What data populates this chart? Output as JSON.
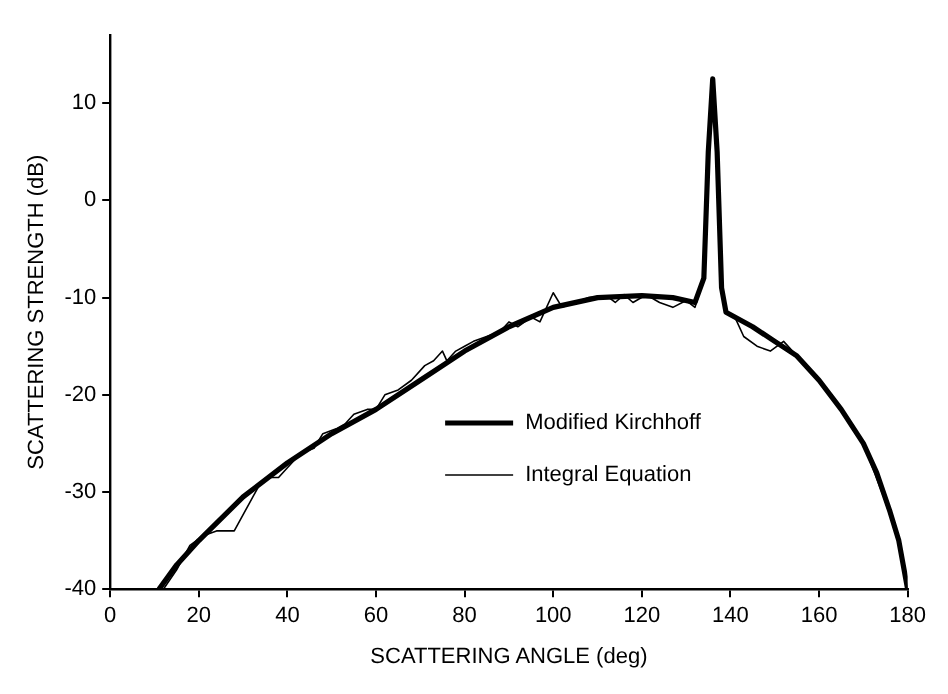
{
  "chart_data": {
    "type": "line",
    "xlabel": "SCATTERING ANGLE (deg)",
    "ylabel": "SCATTERING STRENGTH (dB)",
    "xlim": [
      0,
      180
    ],
    "ylim": [
      -40,
      17
    ],
    "xticks": [
      0,
      20,
      40,
      60,
      80,
      100,
      120,
      140,
      160,
      180
    ],
    "yticks": [
      -40,
      -30,
      -20,
      -10,
      0,
      10
    ],
    "grid": false,
    "legend": "right",
    "marker": "none",
    "series": [
      {
        "name": "Modified Kirchhoff",
        "color": "#000000",
        "x": [
          11,
          15,
          20,
          30,
          40,
          50,
          60,
          70,
          80,
          90,
          100,
          110,
          120,
          127,
          132,
          134,
          135,
          136,
          137,
          138,
          139,
          145,
          150,
          155,
          160,
          165,
          170,
          173,
          176,
          178,
          180
        ],
        "values": [
          -40,
          -37.5,
          -35,
          -30.5,
          -27,
          -24,
          -21.5,
          -18.5,
          -15.5,
          -13,
          -11,
          -10,
          -9.8,
          -10,
          -10.5,
          -8,
          5,
          12.5,
          5,
          -9,
          -11.5,
          -13,
          -14.5,
          -16,
          -18.5,
          -21.5,
          -25,
          -28,
          -32,
          -35,
          -40
        ]
      },
      {
        "name": "Integral Equation",
        "color": "#000000",
        "x": [
          12,
          15,
          18,
          21,
          24,
          28,
          31,
          34,
          36,
          38,
          40,
          43,
          46,
          48,
          51,
          53,
          55,
          58,
          60,
          62,
          65,
          68,
          71,
          73,
          75,
          76,
          78,
          80,
          82,
          85,
          88,
          90,
          92,
          95,
          97,
          100,
          102,
          105,
          108,
          112,
          114,
          116,
          118,
          121,
          124,
          127,
          130,
          132,
          134,
          135,
          136,
          137,
          138,
          139,
          141,
          143,
          146,
          149,
          152,
          156,
          160,
          165,
          170,
          175,
          178,
          180
        ],
        "values": [
          -40,
          -38,
          -35.5,
          -34.5,
          -34,
          -34,
          -31.5,
          -29,
          -28.5,
          -28.5,
          -27.5,
          -26,
          -25.5,
          -24,
          -23.5,
          -23,
          -22,
          -21.5,
          -21.5,
          -20,
          -19.5,
          -18.5,
          -17,
          -16.5,
          -15.5,
          -16.5,
          -15.5,
          -15,
          -14.5,
          -14,
          -13.5,
          -12.5,
          -13,
          -12,
          -12.5,
          -9.5,
          -11,
          -10.5,
          -10,
          -9.8,
          -10.5,
          -9.7,
          -10.5,
          -9.7,
          -10.5,
          -11,
          -10.3,
          -11,
          -8,
          4,
          12,
          5,
          -8,
          -11.5,
          -12,
          -14,
          -15,
          -15.5,
          -14.5,
          -16.5,
          -18.5,
          -21.5,
          -25,
          -31,
          -35,
          -40
        ]
      }
    ]
  }
}
